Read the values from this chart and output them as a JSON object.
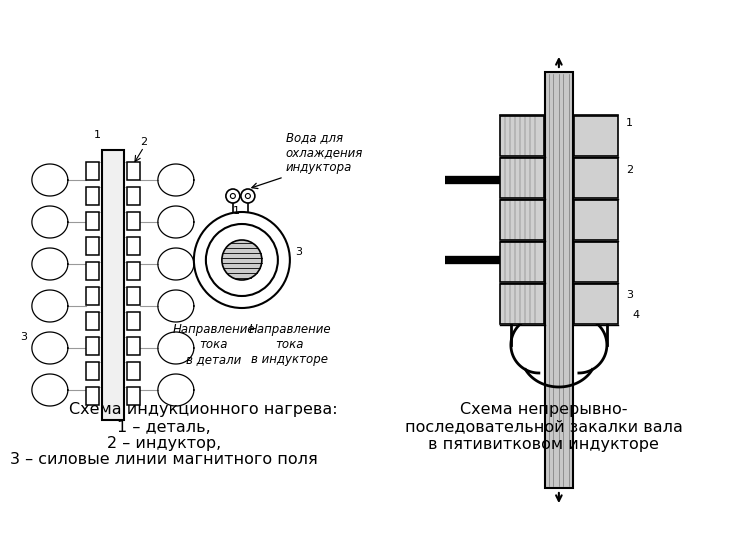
{
  "bg_color": "#ffffff",
  "text_color": "#000000",
  "caption_left_title": "Схема индукционного нагрева:",
  "caption_left_1": "1 – деталь,",
  "caption_left_2": "2 – индуктор,",
  "caption_left_3": "3 – силовые линии магнитного поля",
  "caption_right": "Схема непрерывно-\nпоследовательной закалки вала\nв пятивитковом индукторе",
  "label_water": "Вода для\nохлаждения\nиндуктора",
  "label_tok_detail": "Направление\nтока\nв детали",
  "label_tok_inductor": "Направление\nтока\nв индукторе",
  "font_caption": 11.5,
  "font_label": 8.5,
  "font_num": 8
}
